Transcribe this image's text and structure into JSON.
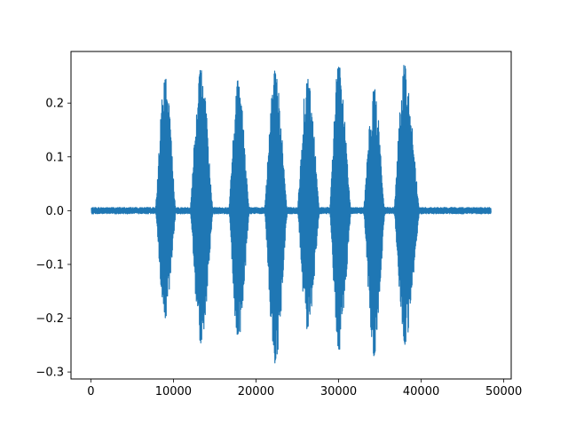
{
  "chart_data": {
    "type": "line",
    "title": "",
    "xlabel": "",
    "ylabel": "",
    "xlim": [
      -2400,
      50900
    ],
    "ylim": [
      -0.313,
      0.296
    ],
    "grid": false,
    "legend": "none",
    "series": [
      {
        "color": "#1f77b4",
        "sample_count": 48500,
        "noise_floor_amplitude": 0.006,
        "bursts": [
          {
            "start": 7800,
            "peak": 9000,
            "end": 10300,
            "max": 0.245,
            "min": -0.2
          },
          {
            "start": 12000,
            "peak": 13300,
            "end": 14800,
            "max": 0.27,
            "min": -0.25
          },
          {
            "start": 16700,
            "peak": 17800,
            "end": 19200,
            "max": 0.245,
            "min": -0.24
          },
          {
            "start": 21000,
            "peak": 22300,
            "end": 23800,
            "max": 0.26,
            "min": -0.283
          },
          {
            "start": 25000,
            "peak": 26200,
            "end": 27700,
            "max": 0.25,
            "min": -0.22
          },
          {
            "start": 28900,
            "peak": 30000,
            "end": 31500,
            "max": 0.27,
            "min": -0.26
          },
          {
            "start": 33000,
            "peak": 34300,
            "end": 35600,
            "max": 0.225,
            "min": -0.273
          },
          {
            "start": 36700,
            "peak": 38000,
            "end": 39800,
            "max": 0.27,
            "min": -0.25
          }
        ]
      }
    ],
    "xticks": [
      {
        "value": 0,
        "label": "0"
      },
      {
        "value": 10000,
        "label": "10000"
      },
      {
        "value": 20000,
        "label": "20000"
      },
      {
        "value": 30000,
        "label": "30000"
      },
      {
        "value": 40000,
        "label": "40000"
      },
      {
        "value": 50000,
        "label": "50000"
      }
    ],
    "yticks": [
      {
        "value": 0.2,
        "label": "0.2"
      },
      {
        "value": 0.1,
        "label": "0.1"
      },
      {
        "value": 0.0,
        "label": "0.0"
      },
      {
        "value": -0.1,
        "label": "−0.1"
      },
      {
        "value": -0.2,
        "label": "−0.2"
      },
      {
        "value": -0.3,
        "label": "−0.3"
      }
    ]
  }
}
